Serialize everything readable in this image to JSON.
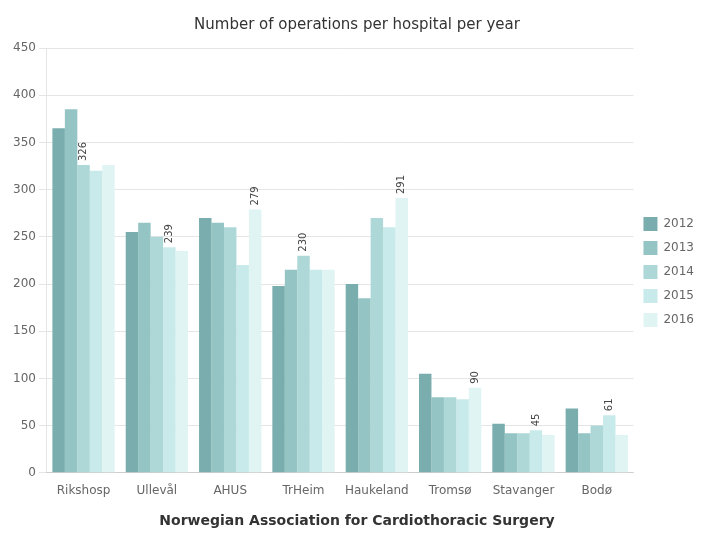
{
  "chart_data": {
    "type": "bar",
    "title": "Number of operations per hospital per year",
    "footer": "Norwegian Association for Cardiothoracic Surgery",
    "categories": [
      "Rikshosp",
      "Ullevål",
      "AHUS",
      "TrHeim",
      "Haukeland",
      "Tromsø",
      "Stavanger",
      "Bodø"
    ],
    "series": [
      {
        "name": "2012",
        "color": "#7aadad",
        "values": [
          365,
          255,
          270,
          198,
          200,
          105,
          52,
          68
        ]
      },
      {
        "name": "2013",
        "color": "#94c4c4",
        "values": [
          385,
          265,
          265,
          215,
          185,
          80,
          42,
          42
        ]
      },
      {
        "name": "2014",
        "color": "#aed8d8",
        "values": [
          326,
          250,
          260,
          230,
          270,
          80,
          42,
          50
        ]
      },
      {
        "name": "2015",
        "color": "#c8eaea",
        "values": [
          320,
          239,
          220,
          215,
          260,
          78,
          45,
          61
        ]
      },
      {
        "name": "2016",
        "color": "#e0f4f4",
        "values": [
          326,
          235,
          279,
          215,
          291,
          90,
          40,
          40
        ]
      }
    ],
    "annotations": [
      {
        "category": "Rikshosp",
        "series": "2014",
        "value": 326
      },
      {
        "category": "Ullevål",
        "series": "2015",
        "value": 239
      },
      {
        "category": "AHUS",
        "series": "2016",
        "value": 279
      },
      {
        "category": "TrHeim",
        "series": "2014",
        "value": 230
      },
      {
        "category": "Haukeland",
        "series": "2016",
        "value": 291
      },
      {
        "category": "Tromsø",
        "series": "2016",
        "value": 90
      },
      {
        "category": "Stavanger",
        "series": "2015",
        "value": 45
      },
      {
        "category": "Bodø",
        "series": "2015",
        "value": 61
      }
    ],
    "ylim": [
      0,
      450
    ],
    "yticks": [
      0,
      50,
      100,
      150,
      200,
      250,
      300,
      350,
      400,
      450
    ],
    "grid": true,
    "legend": "right"
  }
}
